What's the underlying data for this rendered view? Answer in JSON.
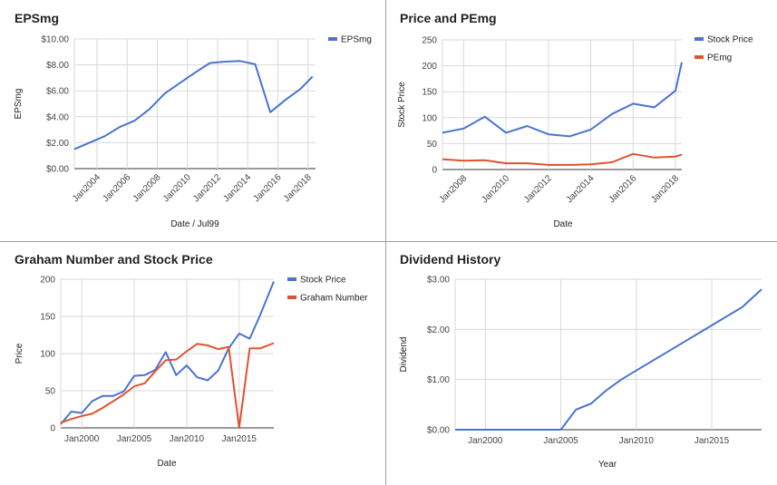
{
  "chart_data": [
    {
      "type": "line",
      "title": "EPSmg",
      "xlabel": "Date / Jul99",
      "ylabel": "EPSmg",
      "xlim": [
        2002.5,
        2018.5
      ],
      "ylim": [
        0,
        10
      ],
      "yticks": [
        0,
        2,
        4,
        6,
        8,
        10
      ],
      "ytick_labels": [
        "$0.00",
        "$2.00",
        "$4.00",
        "$6.00",
        "$8.00",
        "$10.00"
      ],
      "xticks": [
        2004,
        2006,
        2008,
        2010,
        2012,
        2014,
        2016,
        2018
      ],
      "xtick_labels": [
        "Jan2004",
        "Jan2006",
        "Jan2008",
        "Jan2010",
        "Jan2012",
        "Jan2014",
        "Jan2016",
        "Jan2018"
      ],
      "xtick_rotate": true,
      "grid": true,
      "legend": "top-right",
      "series": [
        {
          "name": "EPSmg",
          "color": "#4a74d0",
          "x": [
            2002.5,
            2003.5,
            2004.5,
            2005.5,
            2006.5,
            2007.5,
            2008.5,
            2009.5,
            2010.5,
            2011.5,
            2012.5,
            2013.5,
            2014.5,
            2015.5,
            2016.5,
            2017.5,
            2018.3
          ],
          "y": [
            1.5,
            2.0,
            2.5,
            3.2,
            3.7,
            4.6,
            5.8,
            6.6,
            7.4,
            8.15,
            8.25,
            8.3,
            8.05,
            4.35,
            5.3,
            6.15,
            7.1
          ]
        }
      ]
    },
    {
      "type": "line",
      "title": "Price and PEmg",
      "xlabel": "Date",
      "ylabel": "Stock Price",
      "xlim": [
        2007,
        2018.3
      ],
      "ylim": [
        0,
        250
      ],
      "yticks": [
        0,
        50,
        100,
        150,
        200,
        250
      ],
      "ytick_labels": [
        "0",
        "50",
        "100",
        "150",
        "200",
        "250"
      ],
      "xticks": [
        2008,
        2010,
        2012,
        2014,
        2016,
        2018
      ],
      "xtick_labels": [
        "Jan2008",
        "Jan2010",
        "Jan2012",
        "Jan2014",
        "Jan2016",
        "Jan2018"
      ],
      "xtick_rotate": true,
      "grid": true,
      "legend": "top-right",
      "series": [
        {
          "name": "Stock Price",
          "color": "#4a74d0",
          "x": [
            2007,
            2008,
            2009,
            2010,
            2011,
            2012,
            2013,
            2014,
            2015,
            2016,
            2017,
            2018,
            2018.3
          ],
          "y": [
            71,
            79,
            102,
            71,
            84,
            68,
            64,
            77,
            107,
            127,
            120,
            152,
            207
          ]
        },
        {
          "name": "PEmg",
          "color": "#e0532e",
          "x": [
            2007,
            2008,
            2009,
            2010,
            2011,
            2012,
            2013,
            2014,
            2015,
            2016,
            2017,
            2018,
            2018.3
          ],
          "y": [
            20,
            17,
            18,
            12,
            12,
            9,
            9,
            10,
            14,
            30,
            23,
            25,
            29
          ]
        }
      ]
    },
    {
      "type": "line",
      "title": "Graham Number and Stock Price",
      "xlabel": "Date",
      "ylabel": "Price",
      "xlim": [
        1998,
        2018.3
      ],
      "ylim": [
        0,
        200
      ],
      "yticks": [
        0,
        50,
        100,
        150,
        200
      ],
      "ytick_labels": [
        "0",
        "50",
        "100",
        "150",
        "200"
      ],
      "xticks": [
        2000,
        2005,
        2010,
        2015
      ],
      "xtick_labels": [
        "Jan2000",
        "Jan2005",
        "Jan2010",
        "Jan2015"
      ],
      "xtick_rotate": false,
      "grid": true,
      "legend": "top-right",
      "series": [
        {
          "name": "Stock Price",
          "color": "#4a74d0",
          "x": [
            1998,
            1999,
            2000,
            2001,
            2002,
            2003,
            2004,
            2005,
            2006,
            2007,
            2008,
            2009,
            2010,
            2011,
            2012,
            2013,
            2014,
            2015,
            2016,
            2017,
            2018.3
          ],
          "y": [
            5,
            22,
            20,
            36,
            43,
            43,
            49,
            70,
            71,
            78,
            102,
            71,
            84,
            68,
            64,
            77,
            107,
            127,
            120,
            152,
            197
          ]
        },
        {
          "name": "Graham Number",
          "color": "#e0532e",
          "x": [
            1998,
            1999,
            2000,
            2001,
            2002,
            2003,
            2004,
            2005,
            2006,
            2007,
            2008,
            2009,
            2010,
            2011,
            2012,
            2013,
            2014,
            2015,
            2016,
            2017,
            2018.3
          ],
          "y": [
            7,
            12,
            16,
            19,
            27,
            36,
            45,
            56,
            60,
            76,
            91,
            92,
            103,
            113,
            111,
            106,
            109,
            0,
            107,
            107,
            114
          ]
        }
      ]
    },
    {
      "type": "line",
      "title": "Dividend History",
      "xlabel": "Year",
      "ylabel": "Dividend",
      "xlim": [
        1998,
        2018.3
      ],
      "ylim": [
        0,
        3
      ],
      "yticks": [
        0,
        1,
        2,
        3
      ],
      "ytick_labels": [
        "$0.00",
        "$1.00",
        "$2.00",
        "$3.00"
      ],
      "xticks": [
        2000,
        2005,
        2010,
        2015
      ],
      "xtick_labels": [
        "Jan2000",
        "Jan2005",
        "Jan2010",
        "Jan2015"
      ],
      "xtick_rotate": false,
      "grid": true,
      "legend": "none",
      "series": [
        {
          "color": "#4a74d0",
          "x": [
            1998,
            2004,
            2005,
            2006,
            2007,
            2008,
            2009,
            2010,
            2011,
            2012,
            2013,
            2014,
            2015,
            2016,
            2017,
            2018.3
          ],
          "y": [
            0,
            0,
            0,
            0.4,
            0.52,
            0.78,
            1.0,
            1.18,
            1.36,
            1.54,
            1.72,
            1.9,
            2.08,
            2.26,
            2.44,
            2.8
          ]
        }
      ]
    }
  ]
}
